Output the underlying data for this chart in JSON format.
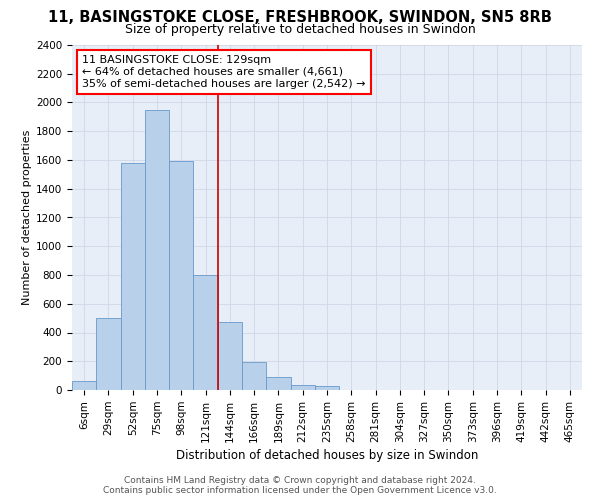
{
  "title1": "11, BASINGSTOKE CLOSE, FRESHBROOK, SWINDON, SN5 8RB",
  "title2": "Size of property relative to detached houses in Swindon",
  "xlabel": "Distribution of detached houses by size in Swindon",
  "ylabel": "Number of detached properties",
  "footer1": "Contains HM Land Registry data © Crown copyright and database right 2024.",
  "footer2": "Contains public sector information licensed under the Open Government Licence v3.0.",
  "annotation_line1": "11 BASINGSTOKE CLOSE: 129sqm",
  "annotation_line2": "← 64% of detached houses are smaller (4,661)",
  "annotation_line3": "35% of semi-detached houses are larger (2,542) →",
  "bar_labels": [
    "6sqm",
    "29sqm",
    "52sqm",
    "75sqm",
    "98sqm",
    "121sqm",
    "144sqm",
    "166sqm",
    "189sqm",
    "212sqm",
    "235sqm",
    "258sqm",
    "281sqm",
    "304sqm",
    "327sqm",
    "350sqm",
    "373sqm",
    "396sqm",
    "419sqm",
    "442sqm",
    "465sqm"
  ],
  "bar_values": [
    60,
    500,
    1580,
    1950,
    1590,
    800,
    475,
    195,
    90,
    35,
    25,
    0,
    0,
    0,
    0,
    0,
    0,
    0,
    0,
    0,
    0
  ],
  "bar_color": "#b8d0ea",
  "bar_edge_color": "#6699cc",
  "vline_index": 5,
  "vline_color": "#cc0000",
  "ylim": [
    0,
    2400
  ],
  "yticks": [
    0,
    200,
    400,
    600,
    800,
    1000,
    1200,
    1400,
    1600,
    1800,
    2000,
    2200,
    2400
  ],
  "grid_color": "#d0d8e8",
  "bg_color": "#e8eef8",
  "title1_fontsize": 10.5,
  "title2_fontsize": 9,
  "xlabel_fontsize": 8.5,
  "ylabel_fontsize": 8,
  "tick_fontsize": 7.5,
  "annot_fontsize": 8,
  "footer_fontsize": 6.5
}
